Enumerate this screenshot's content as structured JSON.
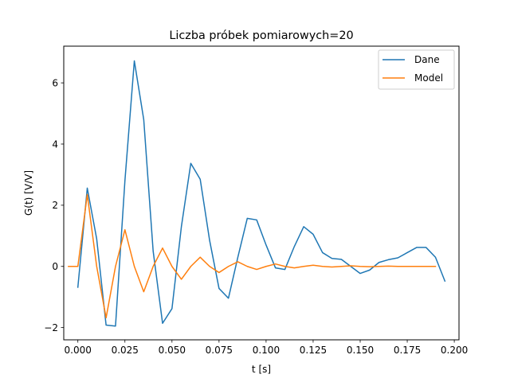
{
  "chart_data": {
    "type": "line",
    "title": "Liczba próbek pomiarowych=20",
    "xlabel": "t [s]",
    "ylabel": "G(t) [V/V]",
    "xlim": [
      -0.0075,
      0.2025
    ],
    "ylim": [
      -2.4,
      7.2
    ],
    "xticks": [
      0.0,
      0.025,
      0.05,
      0.075,
      0.1,
      0.125,
      0.15,
      0.175,
      0.2
    ],
    "xtick_labels": [
      "0.000",
      "0.025",
      "0.050",
      "0.075",
      "0.100",
      "0.125",
      "0.150",
      "0.175",
      "0.200"
    ],
    "yticks": [
      -2,
      0,
      2,
      4,
      6
    ],
    "ytick_labels": [
      "−2",
      "0",
      "2",
      "4",
      "6"
    ],
    "grid": false,
    "legend_position": "top-right",
    "series": [
      {
        "name": "Dane",
        "color": "#1f77b4",
        "x": [
          0.0,
          0.005,
          0.01,
          0.015,
          0.02,
          0.025,
          0.03,
          0.035,
          0.04,
          0.045,
          0.05,
          0.055,
          0.06,
          0.065,
          0.07,
          0.075,
          0.08,
          0.085,
          0.09,
          0.095,
          0.1,
          0.105,
          0.11,
          0.115,
          0.12,
          0.125,
          0.13,
          0.135,
          0.14,
          0.145,
          0.15,
          0.155,
          0.16,
          0.165,
          0.17,
          0.175,
          0.18,
          0.185,
          0.19,
          0.195
        ],
        "y": [
          -0.68,
          2.56,
          0.9,
          -1.92,
          -1.95,
          2.8,
          6.72,
          4.8,
          0.5,
          -1.86,
          -1.38,
          1.3,
          3.37,
          2.85,
          0.85,
          -0.72,
          -1.04,
          0.3,
          1.57,
          1.52,
          0.7,
          -0.05,
          -0.1,
          0.65,
          1.3,
          1.05,
          0.45,
          0.26,
          0.23,
          0.0,
          -0.23,
          -0.12,
          0.13,
          0.22,
          0.28,
          0.45,
          0.62,
          0.62,
          0.3,
          -0.48
        ]
      },
      {
        "name": "Model",
        "color": "#ff7f0e",
        "x": [
          -0.005,
          0.0,
          0.005,
          0.01,
          0.015,
          0.02,
          0.025,
          0.03,
          0.035,
          0.04,
          0.045,
          0.05,
          0.055,
          0.06,
          0.065,
          0.07,
          0.075,
          0.08,
          0.085,
          0.09,
          0.095,
          0.1,
          0.105,
          0.11,
          0.115,
          0.12,
          0.125,
          0.13,
          0.135,
          0.14,
          0.145,
          0.15,
          0.155,
          0.16,
          0.165,
          0.17,
          0.175,
          0.18,
          0.185,
          0.19
        ],
        "y": [
          0.0,
          0.0,
          2.35,
          0.0,
          -1.68,
          0.0,
          1.2,
          0.0,
          -0.83,
          0.0,
          0.6,
          0.0,
          -0.42,
          0.0,
          0.3,
          0.0,
          -0.2,
          0.0,
          0.15,
          0.0,
          -0.1,
          0.0,
          0.08,
          0.0,
          -0.05,
          0.0,
          0.04,
          0.0,
          -0.02,
          0.0,
          0.02,
          0.0,
          -0.01,
          0.0,
          0.01,
          0.0,
          0.0,
          0.0,
          0.0,
          0.0
        ]
      }
    ]
  }
}
